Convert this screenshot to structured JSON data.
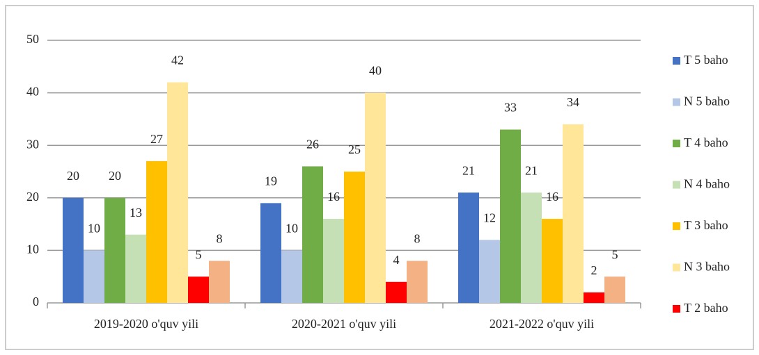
{
  "chart_data": {
    "type": "bar",
    "categories": [
      "2019-2020 o'quv yili",
      "2020-2021 o'quv yili",
      "2021-2022 o'quv yili"
    ],
    "series": [
      {
        "name": "T 5 baho",
        "color": "#4472c4",
        "values": [
          20,
          19,
          21
        ]
      },
      {
        "name": "N 5 baho",
        "color": "#b4c7e7",
        "values": [
          10,
          10,
          12
        ]
      },
      {
        "name": "T 4 baho",
        "color": "#70ad47",
        "values": [
          20,
          26,
          33
        ]
      },
      {
        "name": "N 4 baho",
        "color": "#c5e0b4",
        "values": [
          13,
          16,
          21
        ]
      },
      {
        "name": "T 3 baho",
        "color": "#ffc000",
        "values": [
          27,
          25,
          16
        ]
      },
      {
        "name": "N 3 baho",
        "color": "#ffe699",
        "values": [
          42,
          40,
          34
        ]
      },
      {
        "name": "T 2 baho",
        "color": "#ff0000",
        "values": [
          5,
          4,
          2
        ]
      },
      {
        "name": null,
        "color": "#f4b183",
        "values": [
          8,
          8,
          5
        ]
      }
    ],
    "ylim": [
      0,
      50
    ],
    "yticks": [
      0,
      10,
      20,
      30,
      40,
      50
    ],
    "grid": true,
    "legend": "right"
  }
}
